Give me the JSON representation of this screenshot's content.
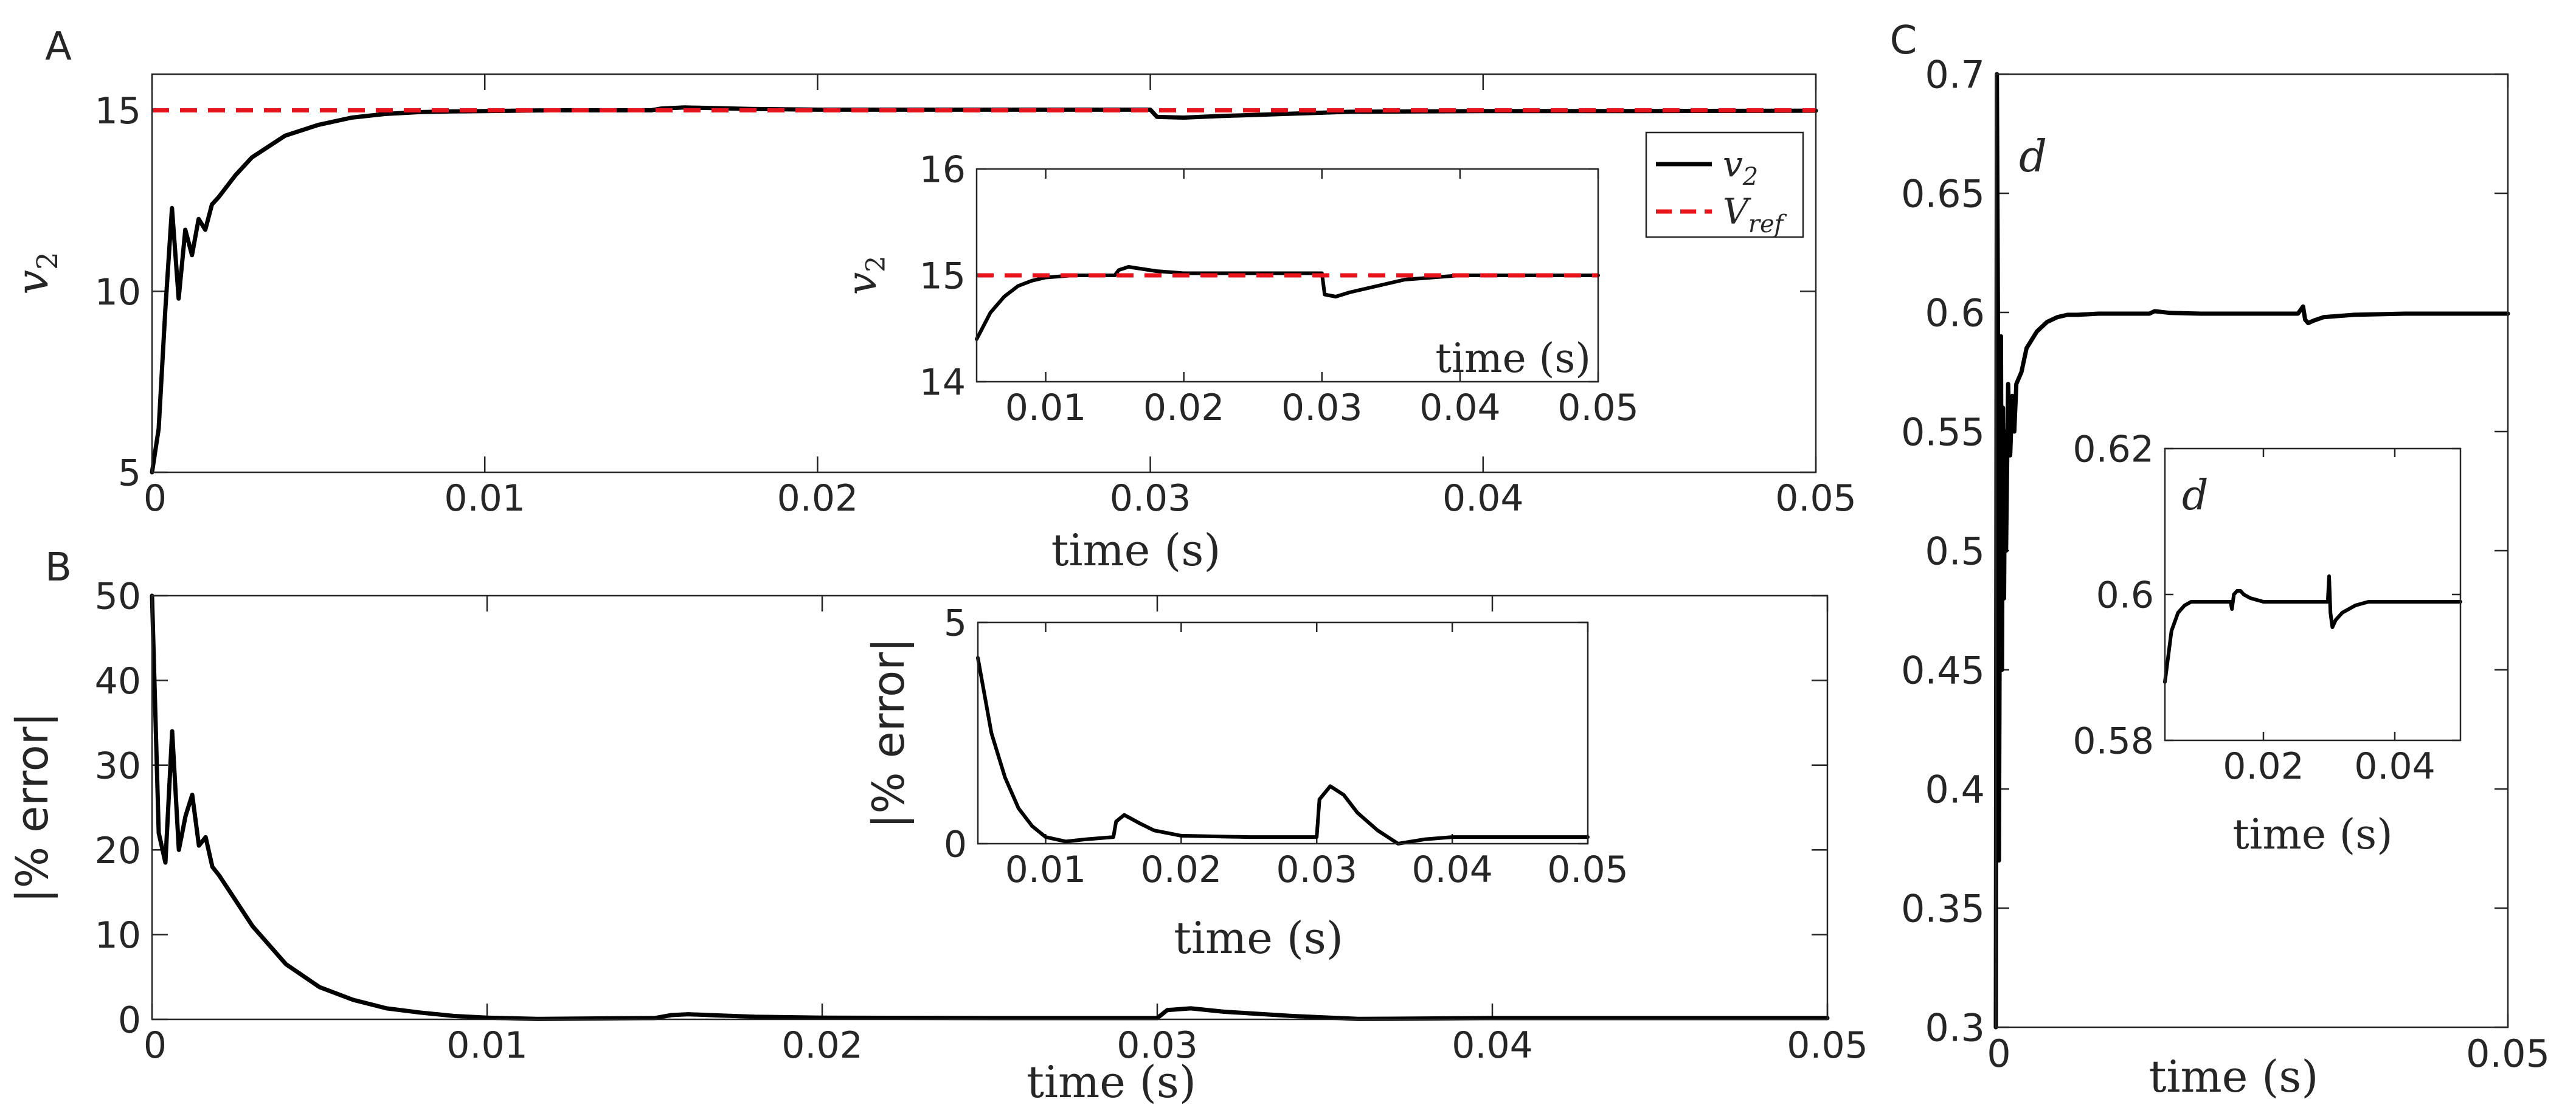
{
  "panel_labels": {
    "a": "A",
    "b": "B",
    "c": "C"
  },
  "colors": {
    "signal": "#000000",
    "reference": "#e8141b",
    "axis": "#262626"
  },
  "chart_data": [
    {
      "id": "A-main",
      "panel": "A",
      "type": "line",
      "xlabel": "time (s)",
      "ylabel": "v",
      "ylabel_sub": "2",
      "xlim": [
        0,
        0.05
      ],
      "ylim": [
        5,
        16
      ],
      "xticks": [
        0,
        0.01,
        0.02,
        0.03,
        0.04,
        0.05
      ],
      "xticklabels": [
        "0",
        "0.01",
        "0.02",
        "0.03",
        "0.04",
        "0.05"
      ],
      "yticks": [
        5,
        10,
        15
      ],
      "yticklabels": [
        "5",
        "10",
        "15"
      ],
      "legend": {
        "position": "top-right",
        "entries": [
          {
            "label": "v",
            "sub": "2",
            "style": "solid-black"
          },
          {
            "label": "V",
            "sub": "ref",
            "style": "dashed-red"
          }
        ]
      },
      "series": [
        {
          "name": "v2",
          "x": [
            0,
            0.0002,
            0.0004,
            0.0006,
            0.0008,
            0.001,
            0.0012,
            0.0014,
            0.0016,
            0.0018,
            0.002,
            0.0025,
            0.003,
            0.004,
            0.005,
            0.006,
            0.007,
            0.008,
            0.009,
            0.01,
            0.012,
            0.014,
            0.015,
            0.0153,
            0.016,
            0.017,
            0.018,
            0.02,
            0.025,
            0.0295,
            0.03,
            0.0302,
            0.031,
            0.032,
            0.034,
            0.036,
            0.04,
            0.045,
            0.05
          ],
          "y": [
            5.0,
            6.2,
            9.5,
            12.3,
            9.8,
            11.7,
            11.0,
            12.0,
            11.7,
            12.4,
            12.6,
            13.2,
            13.7,
            14.3,
            14.6,
            14.8,
            14.9,
            14.95,
            14.97,
            14.98,
            15.0,
            15.0,
            15.0,
            15.05,
            15.08,
            15.06,
            15.04,
            15.02,
            15.02,
            15.02,
            15.02,
            14.82,
            14.8,
            14.84,
            14.9,
            14.96,
            14.98,
            14.98,
            14.99
          ]
        },
        {
          "name": "Vref",
          "x": [
            0,
            0.05
          ],
          "y": [
            15,
            15
          ]
        }
      ]
    },
    {
      "id": "A-inset",
      "panel": "A",
      "type": "line",
      "xlabel": "time (s)",
      "ylabel": "v",
      "ylabel_sub": "2",
      "xlim": [
        0.005,
        0.05
      ],
      "ylim": [
        14,
        16
      ],
      "xticks": [
        0.01,
        0.02,
        0.03,
        0.04,
        0.05
      ],
      "xticklabels": [
        "0.01",
        "0.02",
        "0.03",
        "0.04",
        "0.05"
      ],
      "yticks": [
        14,
        15,
        16
      ],
      "yticklabels": [
        "14",
        "15",
        "16"
      ],
      "series": [
        {
          "name": "v2",
          "x": [
            0.005,
            0.006,
            0.007,
            0.008,
            0.009,
            0.01,
            0.012,
            0.014,
            0.015,
            0.0153,
            0.016,
            0.017,
            0.018,
            0.02,
            0.025,
            0.0295,
            0.03,
            0.0302,
            0.031,
            0.032,
            0.034,
            0.036,
            0.04,
            0.045,
            0.05
          ],
          "y": [
            14.4,
            14.65,
            14.8,
            14.9,
            14.95,
            14.98,
            15.0,
            15.0,
            15.0,
            15.05,
            15.08,
            15.06,
            15.04,
            15.02,
            15.02,
            15.02,
            15.02,
            14.82,
            14.8,
            14.84,
            14.9,
            14.96,
            15.0,
            15.0,
            15.0
          ]
        },
        {
          "name": "Vref",
          "x": [
            0.005,
            0.05
          ],
          "y": [
            15,
            15
          ]
        }
      ]
    },
    {
      "id": "B-main",
      "panel": "B",
      "type": "line",
      "xlabel": "time (s)",
      "ylabel": "|% error|",
      "xlim": [
        0,
        0.05
      ],
      "ylim": [
        0,
        50
      ],
      "xticks": [
        0,
        0.01,
        0.02,
        0.03,
        0.04,
        0.05
      ],
      "xticklabels": [
        "0",
        "0.01",
        "0.02",
        "0.03",
        "0.04",
        "0.05"
      ],
      "yticks": [
        0,
        10,
        20,
        30,
        40,
        50
      ],
      "yticklabels": [
        "0",
        "10",
        "20",
        "30",
        "40",
        "50"
      ],
      "series": [
        {
          "name": "error",
          "x": [
            0,
            0.0002,
            0.0004,
            0.0006,
            0.0008,
            0.001,
            0.0012,
            0.0014,
            0.0016,
            0.0018,
            0.002,
            0.0025,
            0.003,
            0.004,
            0.005,
            0.006,
            0.007,
            0.008,
            0.009,
            0.01,
            0.0115,
            0.013,
            0.015,
            0.0155,
            0.016,
            0.017,
            0.018,
            0.02,
            0.025,
            0.0295,
            0.03,
            0.0303,
            0.031,
            0.032,
            0.034,
            0.036,
            0.04,
            0.045,
            0.05
          ],
          "y": [
            50,
            22,
            18.5,
            34,
            20,
            24,
            26.5,
            20.5,
            21.5,
            18,
            17,
            14,
            11,
            6.5,
            3.8,
            2.3,
            1.3,
            0.8,
            0.4,
            0.2,
            0.05,
            0.1,
            0.15,
            0.5,
            0.6,
            0.45,
            0.3,
            0.2,
            0.15,
            0.15,
            0.15,
            1.1,
            1.3,
            0.9,
            0.4,
            0.05,
            0.15,
            0.15,
            0.15
          ]
        }
      ]
    },
    {
      "id": "B-inset",
      "panel": "B",
      "type": "line",
      "xlabel": "time (s)",
      "ylabel": "|% error|",
      "xlim": [
        0.005,
        0.05
      ],
      "ylim": [
        0,
        5
      ],
      "xticks": [
        0.01,
        0.02,
        0.03,
        0.04,
        0.05
      ],
      "xticklabels": [
        "0.01",
        "0.02",
        "0.03",
        "0.04",
        "0.05"
      ],
      "yticks": [
        0,
        5
      ],
      "yticklabels": [
        "0",
        "5"
      ],
      "series": [
        {
          "name": "error",
          "x": [
            0.005,
            0.006,
            0.007,
            0.008,
            0.009,
            0.01,
            0.0115,
            0.013,
            0.015,
            0.0152,
            0.0158,
            0.017,
            0.018,
            0.02,
            0.025,
            0.0298,
            0.03,
            0.0302,
            0.031,
            0.032,
            0.033,
            0.0345,
            0.036,
            0.038,
            0.04,
            0.045,
            0.05
          ],
          "y": [
            4.2,
            2.5,
            1.5,
            0.8,
            0.4,
            0.15,
            0.05,
            0.1,
            0.15,
            0.5,
            0.65,
            0.45,
            0.3,
            0.18,
            0.15,
            0.15,
            0.15,
            1.0,
            1.3,
            1.1,
            0.7,
            0.3,
            0.0,
            0.1,
            0.15,
            0.15,
            0.15
          ]
        }
      ]
    },
    {
      "id": "C-main",
      "panel": "C",
      "type": "line",
      "xlabel": "time (s)",
      "ylabel": "d",
      "xlim": [
        0,
        0.05
      ],
      "ylim": [
        0.3,
        0.7
      ],
      "xticks": [
        0,
        0.05
      ],
      "xticklabels": [
        "0",
        "0.05"
      ],
      "yticks": [
        0.3,
        0.35,
        0.4,
        0.45,
        0.5,
        0.55,
        0.6,
        0.65,
        0.7
      ],
      "yticklabels": [
        "0.3",
        "0.35",
        "0.4",
        "0.45",
        "0.5",
        "0.55",
        "0.6",
        "0.65",
        "0.7"
      ],
      "series": [
        {
          "name": "d",
          "x": [
            0,
            0.0001,
            0.0002,
            0.0003,
            0.0004,
            0.0005,
            0.0006,
            0.0007,
            0.0008,
            0.0009,
            0.001,
            0.0012,
            0.0014,
            0.0016,
            0.0018,
            0.002,
            0.0025,
            0.003,
            0.004,
            0.005,
            0.006,
            0.007,
            0.008,
            0.01,
            0.015,
            0.0155,
            0.016,
            0.017,
            0.02,
            0.0295,
            0.03,
            0.0302,
            0.0305,
            0.031,
            0.032,
            0.035,
            0.04,
            0.05
          ],
          "y": [
            0.3,
            0.7,
            0.6,
            0.37,
            0.5,
            0.59,
            0.45,
            0.56,
            0.48,
            0.55,
            0.5,
            0.57,
            0.54,
            0.565,
            0.55,
            0.57,
            0.575,
            0.585,
            0.592,
            0.596,
            0.598,
            0.599,
            0.599,
            0.5995,
            0.5995,
            0.6005,
            0.6003,
            0.5998,
            0.5995,
            0.5995,
            0.6025,
            0.597,
            0.5955,
            0.5965,
            0.598,
            0.599,
            0.5995,
            0.5995
          ]
        }
      ]
    },
    {
      "id": "C-inset",
      "panel": "C",
      "type": "line",
      "xlabel": "time (s)",
      "ylabel": "d",
      "xlim": [
        0.005,
        0.05
      ],
      "ylim": [
        0.58,
        0.62
      ],
      "xticks": [
        0.02,
        0.04
      ],
      "xticklabels": [
        "0.02",
        "0.04"
      ],
      "yticks": [
        0.58,
        0.6,
        0.62
      ],
      "yticklabels": [
        "0.58",
        "0.6",
        "0.62"
      ],
      "series": [
        {
          "name": "d",
          "x": [
            0.005,
            0.006,
            0.007,
            0.008,
            0.009,
            0.01,
            0.012,
            0.015,
            0.0152,
            0.0155,
            0.016,
            0.0165,
            0.017,
            0.018,
            0.02,
            0.025,
            0.0295,
            0.0298,
            0.03,
            0.0302,
            0.0305,
            0.031,
            0.032,
            0.034,
            0.036,
            0.04,
            0.045,
            0.05
          ],
          "y": [
            0.588,
            0.595,
            0.5975,
            0.5985,
            0.599,
            0.599,
            0.599,
            0.599,
            0.598,
            0.6,
            0.6005,
            0.6005,
            0.6,
            0.5995,
            0.599,
            0.599,
            0.599,
            0.599,
            0.6025,
            0.5975,
            0.5955,
            0.5965,
            0.5975,
            0.5985,
            0.599,
            0.599,
            0.599,
            0.599
          ]
        }
      ]
    }
  ]
}
